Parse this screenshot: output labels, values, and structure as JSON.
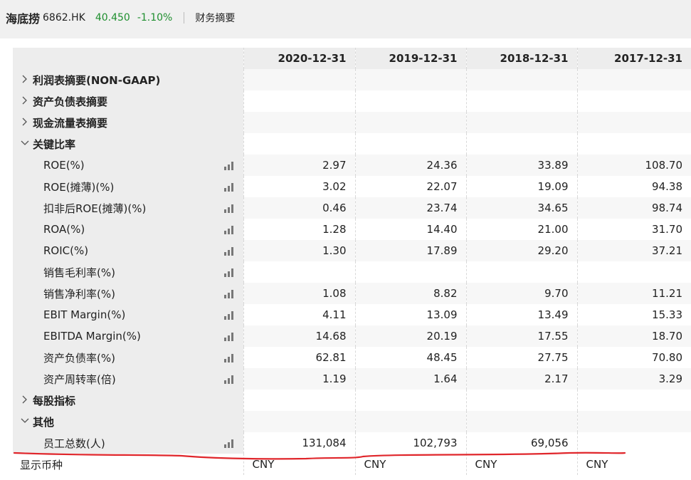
{
  "header": {
    "name": "海底捞",
    "code": "6862.HK",
    "price": "40.450",
    "change": "-1.10%",
    "tab": "财务摘要"
  },
  "table": {
    "columns": [
      "2020-12-31",
      "2019-12-31",
      "2018-12-31",
      "2017-12-31"
    ],
    "rows": [
      {
        "type": "section",
        "label": "利润表摘要(NON-GAAP)",
        "expanded": false
      },
      {
        "type": "section",
        "label": "资产负债表摘要",
        "expanded": false
      },
      {
        "type": "section",
        "label": "现金流量表摘要",
        "expanded": false
      },
      {
        "type": "section",
        "label": "关键比率",
        "expanded": true
      },
      {
        "type": "leaf",
        "label": "ROE(%)",
        "values": [
          "2.97",
          "24.36",
          "33.89",
          "108.70"
        ]
      },
      {
        "type": "leaf",
        "label": "ROE(摊薄)(%)",
        "values": [
          "3.02",
          "22.07",
          "19.09",
          "94.38"
        ]
      },
      {
        "type": "leaf",
        "label": "扣非后ROE(摊薄)(%)",
        "values": [
          "0.46",
          "23.74",
          "34.65",
          "98.74"
        ]
      },
      {
        "type": "leaf",
        "label": "ROA(%)",
        "values": [
          "1.28",
          "14.40",
          "21.00",
          "31.70"
        ]
      },
      {
        "type": "leaf",
        "label": "ROIC(%)",
        "values": [
          "1.30",
          "17.89",
          "29.20",
          "37.21"
        ]
      },
      {
        "type": "leaf",
        "label": "销售毛利率(%)",
        "values": [
          "",
          "",
          "",
          ""
        ]
      },
      {
        "type": "leaf",
        "label": "销售净利率(%)",
        "values": [
          "1.08",
          "8.82",
          "9.70",
          "11.21"
        ]
      },
      {
        "type": "leaf",
        "label": "EBIT Margin(%)",
        "values": [
          "4.11",
          "13.09",
          "13.49",
          "15.33"
        ]
      },
      {
        "type": "leaf",
        "label": "EBITDA Margin(%)",
        "values": [
          "14.68",
          "20.19",
          "17.55",
          "18.70"
        ]
      },
      {
        "type": "leaf",
        "label": "资产负债率(%)",
        "values": [
          "62.81",
          "48.45",
          "27.75",
          "70.80"
        ]
      },
      {
        "type": "leaf",
        "label": "资产周转率(倍)",
        "values": [
          "1.19",
          "1.64",
          "2.17",
          "3.29"
        ]
      },
      {
        "type": "section",
        "label": "每股指标",
        "expanded": false
      },
      {
        "type": "section",
        "label": "其他",
        "expanded": true
      },
      {
        "type": "leaf",
        "label": "员工总数(人)",
        "values": [
          "131,084",
          "102,793",
          "69,056",
          ""
        ]
      }
    ],
    "footer": {
      "label": "显示币种",
      "values": [
        "CNY",
        "CNY",
        "CNY",
        "CNY"
      ]
    }
  },
  "icons": {
    "chart": "bar-chart-icon",
    "collapsed": "chevron-right-icon",
    "expanded": "chevron-down-icon"
  },
  "colors": {
    "up_down": "#1f8f2f",
    "annotation": "#e0262b",
    "header_bg": "#ededed"
  }
}
